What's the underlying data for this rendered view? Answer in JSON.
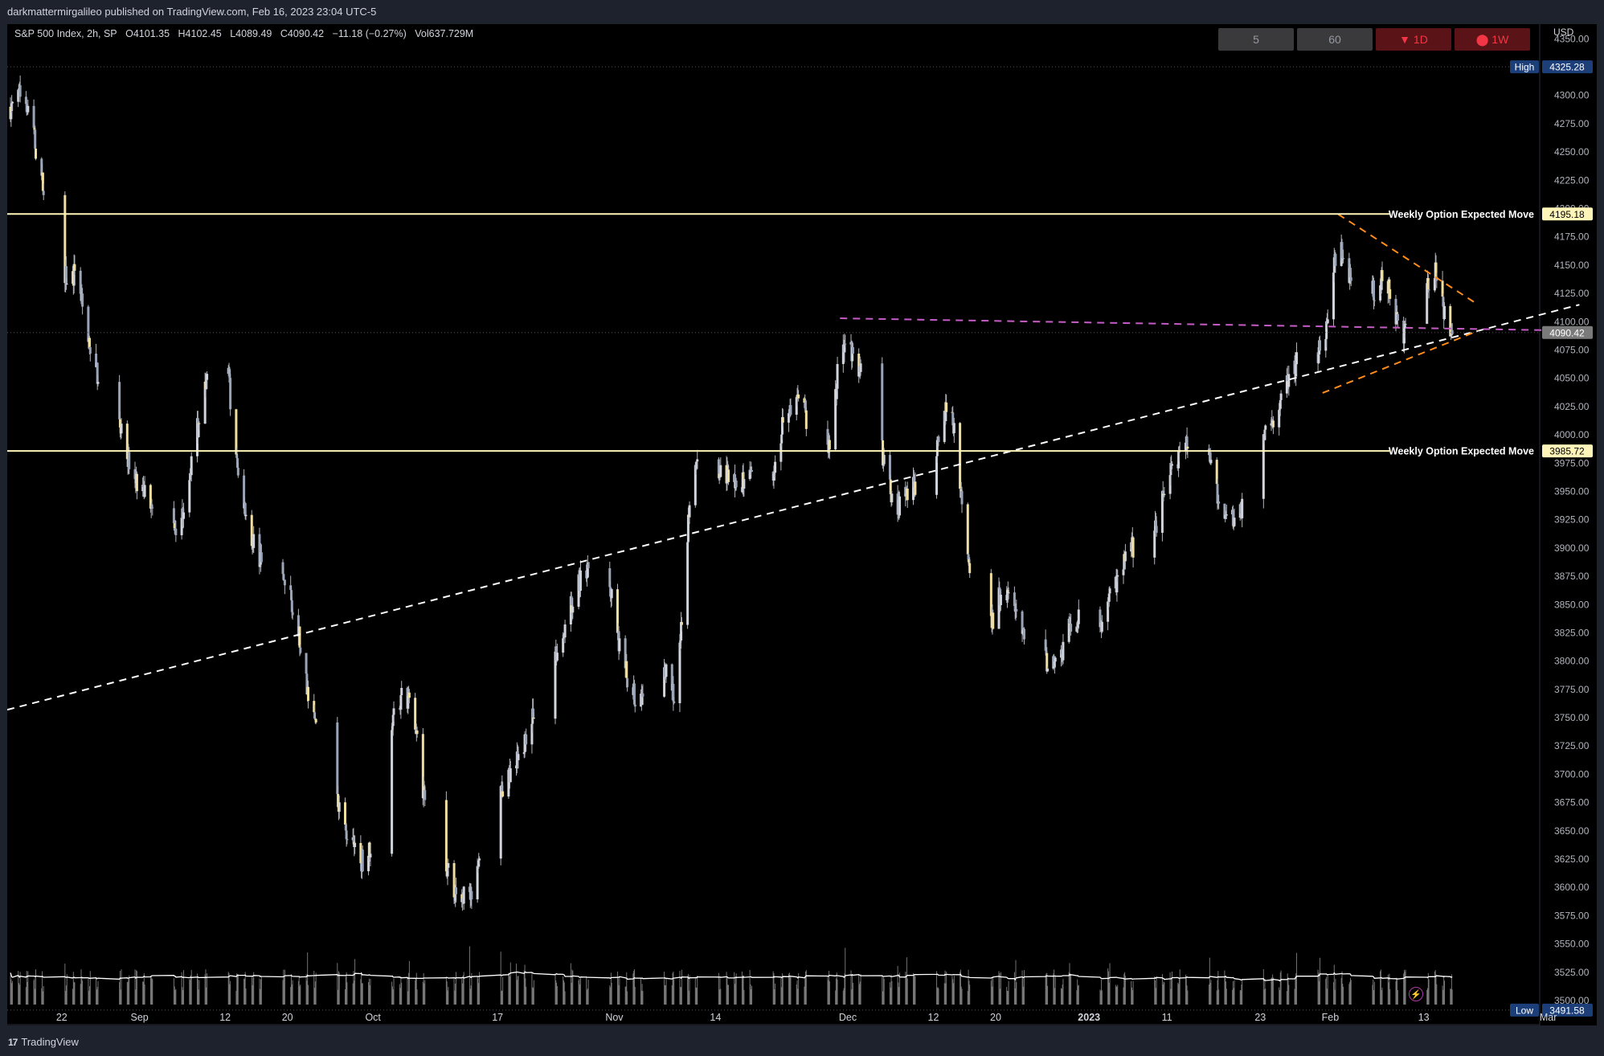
{
  "header": {
    "publisher": "darkmattermirgalileo published on TradingView.com, Feb 16, 2023 23:04 UTC-5"
  },
  "legend": {
    "symbol": "S&P 500 Index, 2h, SP",
    "open": "O4101.35",
    "high": "H4102.45",
    "low": "L4089.49",
    "close": "C4090.42",
    "change": "−11.18 (−0.27%)",
    "volume": "Vol637.729M"
  },
  "timeframes": [
    {
      "label": "5",
      "style": "gray"
    },
    {
      "label": "60",
      "style": "gray"
    },
    {
      "label": "▼ 1D",
      "style": "red"
    },
    {
      "label": "⬤ 1W",
      "style": "red"
    }
  ],
  "footer": {
    "brand_logo": "17",
    "brand": "TradingView"
  },
  "colors": {
    "background": "#000000",
    "candle_body": "#d1d4dc",
    "candle_highlight": "#f0dfa0",
    "expected_move": "#fff5b8",
    "trendline": "#ffffff",
    "resistance": "#c85ac8",
    "wedge": "#ff8c1a",
    "volume": "#9a9a9a",
    "volume_ma": "#ffffff",
    "high_label": "#1c3f7a",
    "current_price_label": "#7a7a7a"
  },
  "chart_data": {
    "type": "candlestick",
    "symbol": "S&P 500 Index",
    "interval": "2h",
    "currency_label": "USD",
    "y_ticks": [
      4350,
      4325,
      4300,
      4275,
      4250,
      4225,
      4200,
      4175,
      4150,
      4125,
      4100,
      4075,
      4050,
      4025,
      4000,
      3975,
      3950,
      3925,
      3900,
      3875,
      3850,
      3825,
      3800,
      3775,
      3750,
      3725,
      3700,
      3675,
      3650,
      3625,
      3600,
      3575,
      3550,
      3525,
      3500
    ],
    "ylim": [
      3478,
      4363
    ],
    "x_labels": [
      {
        "label": "22",
        "date": "2022-08-22"
      },
      {
        "label": "Sep",
        "date": "2022-09-01"
      },
      {
        "label": "12",
        "date": "2022-09-12"
      },
      {
        "label": "20",
        "date": "2022-09-20"
      },
      {
        "label": "Oct",
        "date": "2022-10-01"
      },
      {
        "label": "17",
        "date": "2022-10-17"
      },
      {
        "label": "Nov",
        "date": "2022-11-01"
      },
      {
        "label": "14",
        "date": "2022-11-14"
      },
      {
        "label": "Dec",
        "date": "2022-12-01"
      },
      {
        "label": "12",
        "date": "2022-12-12"
      },
      {
        "label": "20",
        "date": "2022-12-20"
      },
      {
        "label": "2023",
        "date": "2023-01-01"
      },
      {
        "label": "11",
        "date": "2023-01-11"
      },
      {
        "label": "23",
        "date": "2023-01-23"
      },
      {
        "label": "Feb",
        "date": "2023-02-01"
      },
      {
        "label": "13",
        "date": "2023-02-13"
      },
      {
        "label": "Mar",
        "date": "2023-03-01"
      }
    ],
    "price_path": [
      [
        "2022-08-16",
        4290
      ],
      [
        "2022-08-17",
        4310
      ],
      [
        "2022-08-18",
        4280
      ],
      [
        "2022-08-19",
        4240
      ],
      [
        "2022-08-22",
        4140
      ],
      [
        "2022-08-24",
        4140
      ],
      [
        "2022-08-26",
        4060
      ],
      [
        "2022-08-29",
        4030
      ],
      [
        "2022-08-31",
        3960
      ],
      [
        "2022-09-02",
        3950
      ],
      [
        "2022-09-06",
        3910
      ],
      [
        "2022-09-08",
        3990
      ],
      [
        "2022-09-10",
        4060
      ],
      [
        "2022-09-12",
        4110
      ],
      [
        "2022-09-13",
        3990
      ],
      [
        "2022-09-15",
        3920
      ],
      [
        "2022-09-18",
        3860
      ],
      [
        "2022-09-20",
        3870
      ],
      [
        "2022-09-21",
        3840
      ],
      [
        "2022-09-23",
        3760
      ],
      [
        "2022-09-26",
        3680
      ],
      [
        "2022-09-28",
        3640
      ],
      [
        "2022-09-30",
        3620
      ],
      [
        "2022-10-02",
        3670
      ],
      [
        "2022-10-04",
        3770
      ],
      [
        "2022-10-06",
        3760
      ],
      [
        "2022-10-08",
        3660
      ],
      [
        "2022-10-12",
        3590
      ],
      [
        "2022-10-14",
        3600
      ],
      [
        "2022-10-17",
        3680
      ],
      [
        "2022-10-19",
        3700
      ],
      [
        "2022-10-21",
        3740
      ],
      [
        "2022-10-24",
        3790
      ],
      [
        "2022-10-26",
        3840
      ],
      [
        "2022-10-28",
        3880
      ],
      [
        "2022-10-31",
        3880
      ],
      [
        "2022-11-02",
        3800
      ],
      [
        "2022-11-04",
        3760
      ],
      [
        "2022-11-07",
        3800
      ],
      [
        "2022-11-09",
        3760
      ],
      [
        "2022-11-11",
        3980
      ],
      [
        "2022-11-14",
        3970
      ],
      [
        "2022-11-16",
        3960
      ],
      [
        "2022-11-18",
        3960
      ],
      [
        "2022-11-21",
        3950
      ],
      [
        "2022-11-23",
        4020
      ],
      [
        "2022-11-25",
        4030
      ],
      [
        "2022-11-28",
        3960
      ],
      [
        "2022-11-30",
        4070
      ],
      [
        "2022-12-01",
        4080
      ],
      [
        "2022-12-02",
        4070
      ],
      [
        "2022-12-05",
        4000
      ],
      [
        "2022-12-07",
        3930
      ],
      [
        "2022-12-09",
        3950
      ],
      [
        "2022-12-11",
        3960
      ],
      [
        "2022-12-13",
        4000
      ],
      [
        "2022-12-14",
        4040
      ],
      [
        "2022-12-15",
        3980
      ],
      [
        "2022-12-17",
        3870
      ],
      [
        "2022-12-19",
        3820
      ],
      [
        "2022-12-21",
        3870
      ],
      [
        "2022-12-23",
        3830
      ],
      [
        "2022-12-26",
        3800
      ],
      [
        "2022-12-28",
        3800
      ],
      [
        "2022-12-30",
        3840
      ],
      [
        "2023-01-02",
        3820
      ],
      [
        "2023-01-04",
        3860
      ],
      [
        "2023-01-06",
        3900
      ],
      [
        "2023-01-09",
        3900
      ],
      [
        "2023-01-11",
        3960
      ],
      [
        "2023-01-13",
        3990
      ],
      [
        "2023-01-16",
        4000
      ],
      [
        "2023-01-18",
        3930
      ],
      [
        "2023-01-20",
        3920
      ],
      [
        "2023-01-23",
        4000
      ],
      [
        "2023-01-25",
        4010
      ],
      [
        "2023-01-27",
        4060
      ],
      [
        "2023-01-29",
        4070
      ],
      [
        "2023-01-31",
        4075
      ],
      [
        "2023-02-02",
        4170
      ],
      [
        "2023-02-04",
        4135
      ],
      [
        "2023-02-06",
        4120
      ],
      [
        "2023-02-08",
        4145
      ],
      [
        "2023-02-10",
        4090
      ],
      [
        "2023-02-12",
        4095
      ],
      [
        "2023-02-13",
        4130
      ],
      [
        "2023-02-14",
        4140
      ],
      [
        "2023-02-15",
        4145
      ],
      [
        "2023-02-16",
        4090
      ]
    ],
    "levels": [
      {
        "name": "High",
        "value": 4325.28,
        "label": "4325.28"
      },
      {
        "name": "Weekly Option Expected Move",
        "value": 4195.18,
        "label": "4195.18"
      },
      {
        "name": "",
        "value": 4090.42,
        "label": "4090.42"
      },
      {
        "name": "Weekly Option Expected Move",
        "value": 3985.72,
        "label": "3985.72"
      },
      {
        "name": "Low",
        "value": 3491.58,
        "label": "3491.58"
      }
    ],
    "trendlines": [
      {
        "kind": "white-dashed",
        "from": [
          "2022-08-15",
          3757
        ],
        "to": [
          "2023-03-05",
          4115
        ]
      },
      {
        "kind": "purple-dashed",
        "from": [
          "2022-11-30",
          4103
        ],
        "to": [
          "2023-03-05",
          4092
        ]
      },
      {
        "kind": "orange-upper",
        "from": [
          "2023-02-02",
          4195
        ],
        "to": [
          "2023-02-20",
          4115
        ]
      },
      {
        "kind": "orange-lower",
        "from": [
          "2023-01-31",
          4037
        ],
        "to": [
          "2023-02-20",
          4092
        ]
      }
    ],
    "volume": {
      "typical_range": [
        30,
        80
      ],
      "spikes": [
        [
          "2022-09-16",
          190
        ],
        [
          "2022-12-02",
          200
        ],
        [
          "2022-12-16",
          255
        ]
      ]
    },
    "grid": false
  }
}
